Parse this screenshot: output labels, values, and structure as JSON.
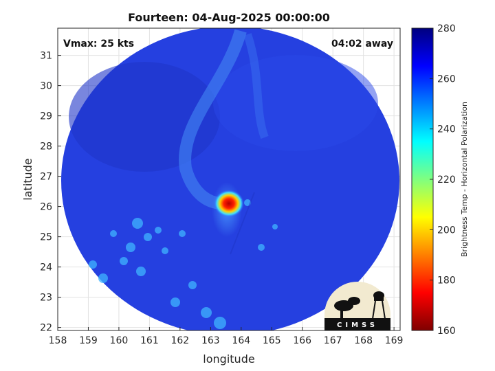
{
  "chart_data": {
    "type": "heatmap",
    "title": "Fourteen: 04-Aug-2025 00:00:00",
    "xlabel": "longitude",
    "ylabel": "latitude",
    "xlim": [
      158,
      169.2
    ],
    "ylim": [
      21.9,
      31.9
    ],
    "xticks": [
      "158",
      "159",
      "160",
      "161",
      "162",
      "163",
      "164",
      "165",
      "166",
      "167",
      "168",
      "169"
    ],
    "yticks": [
      "22",
      "23",
      "24",
      "25",
      "26",
      "27",
      "28",
      "29",
      "30",
      "31"
    ],
    "grid": true,
    "annotations": {
      "vmax": "Vmax: 25 kts",
      "away": "04:02 away"
    },
    "colorbar": {
      "label": "Brightness Temp - Horizontal Polarization",
      "range": [
        160,
        280
      ],
      "ticks": [
        "160",
        "180",
        "200",
        "220",
        "240",
        "260",
        "280"
      ]
    },
    "center": {
      "lon": 163.6,
      "lat": 26.1,
      "value": 175
    },
    "background_value": 262,
    "logo_text": "CIMSS"
  }
}
